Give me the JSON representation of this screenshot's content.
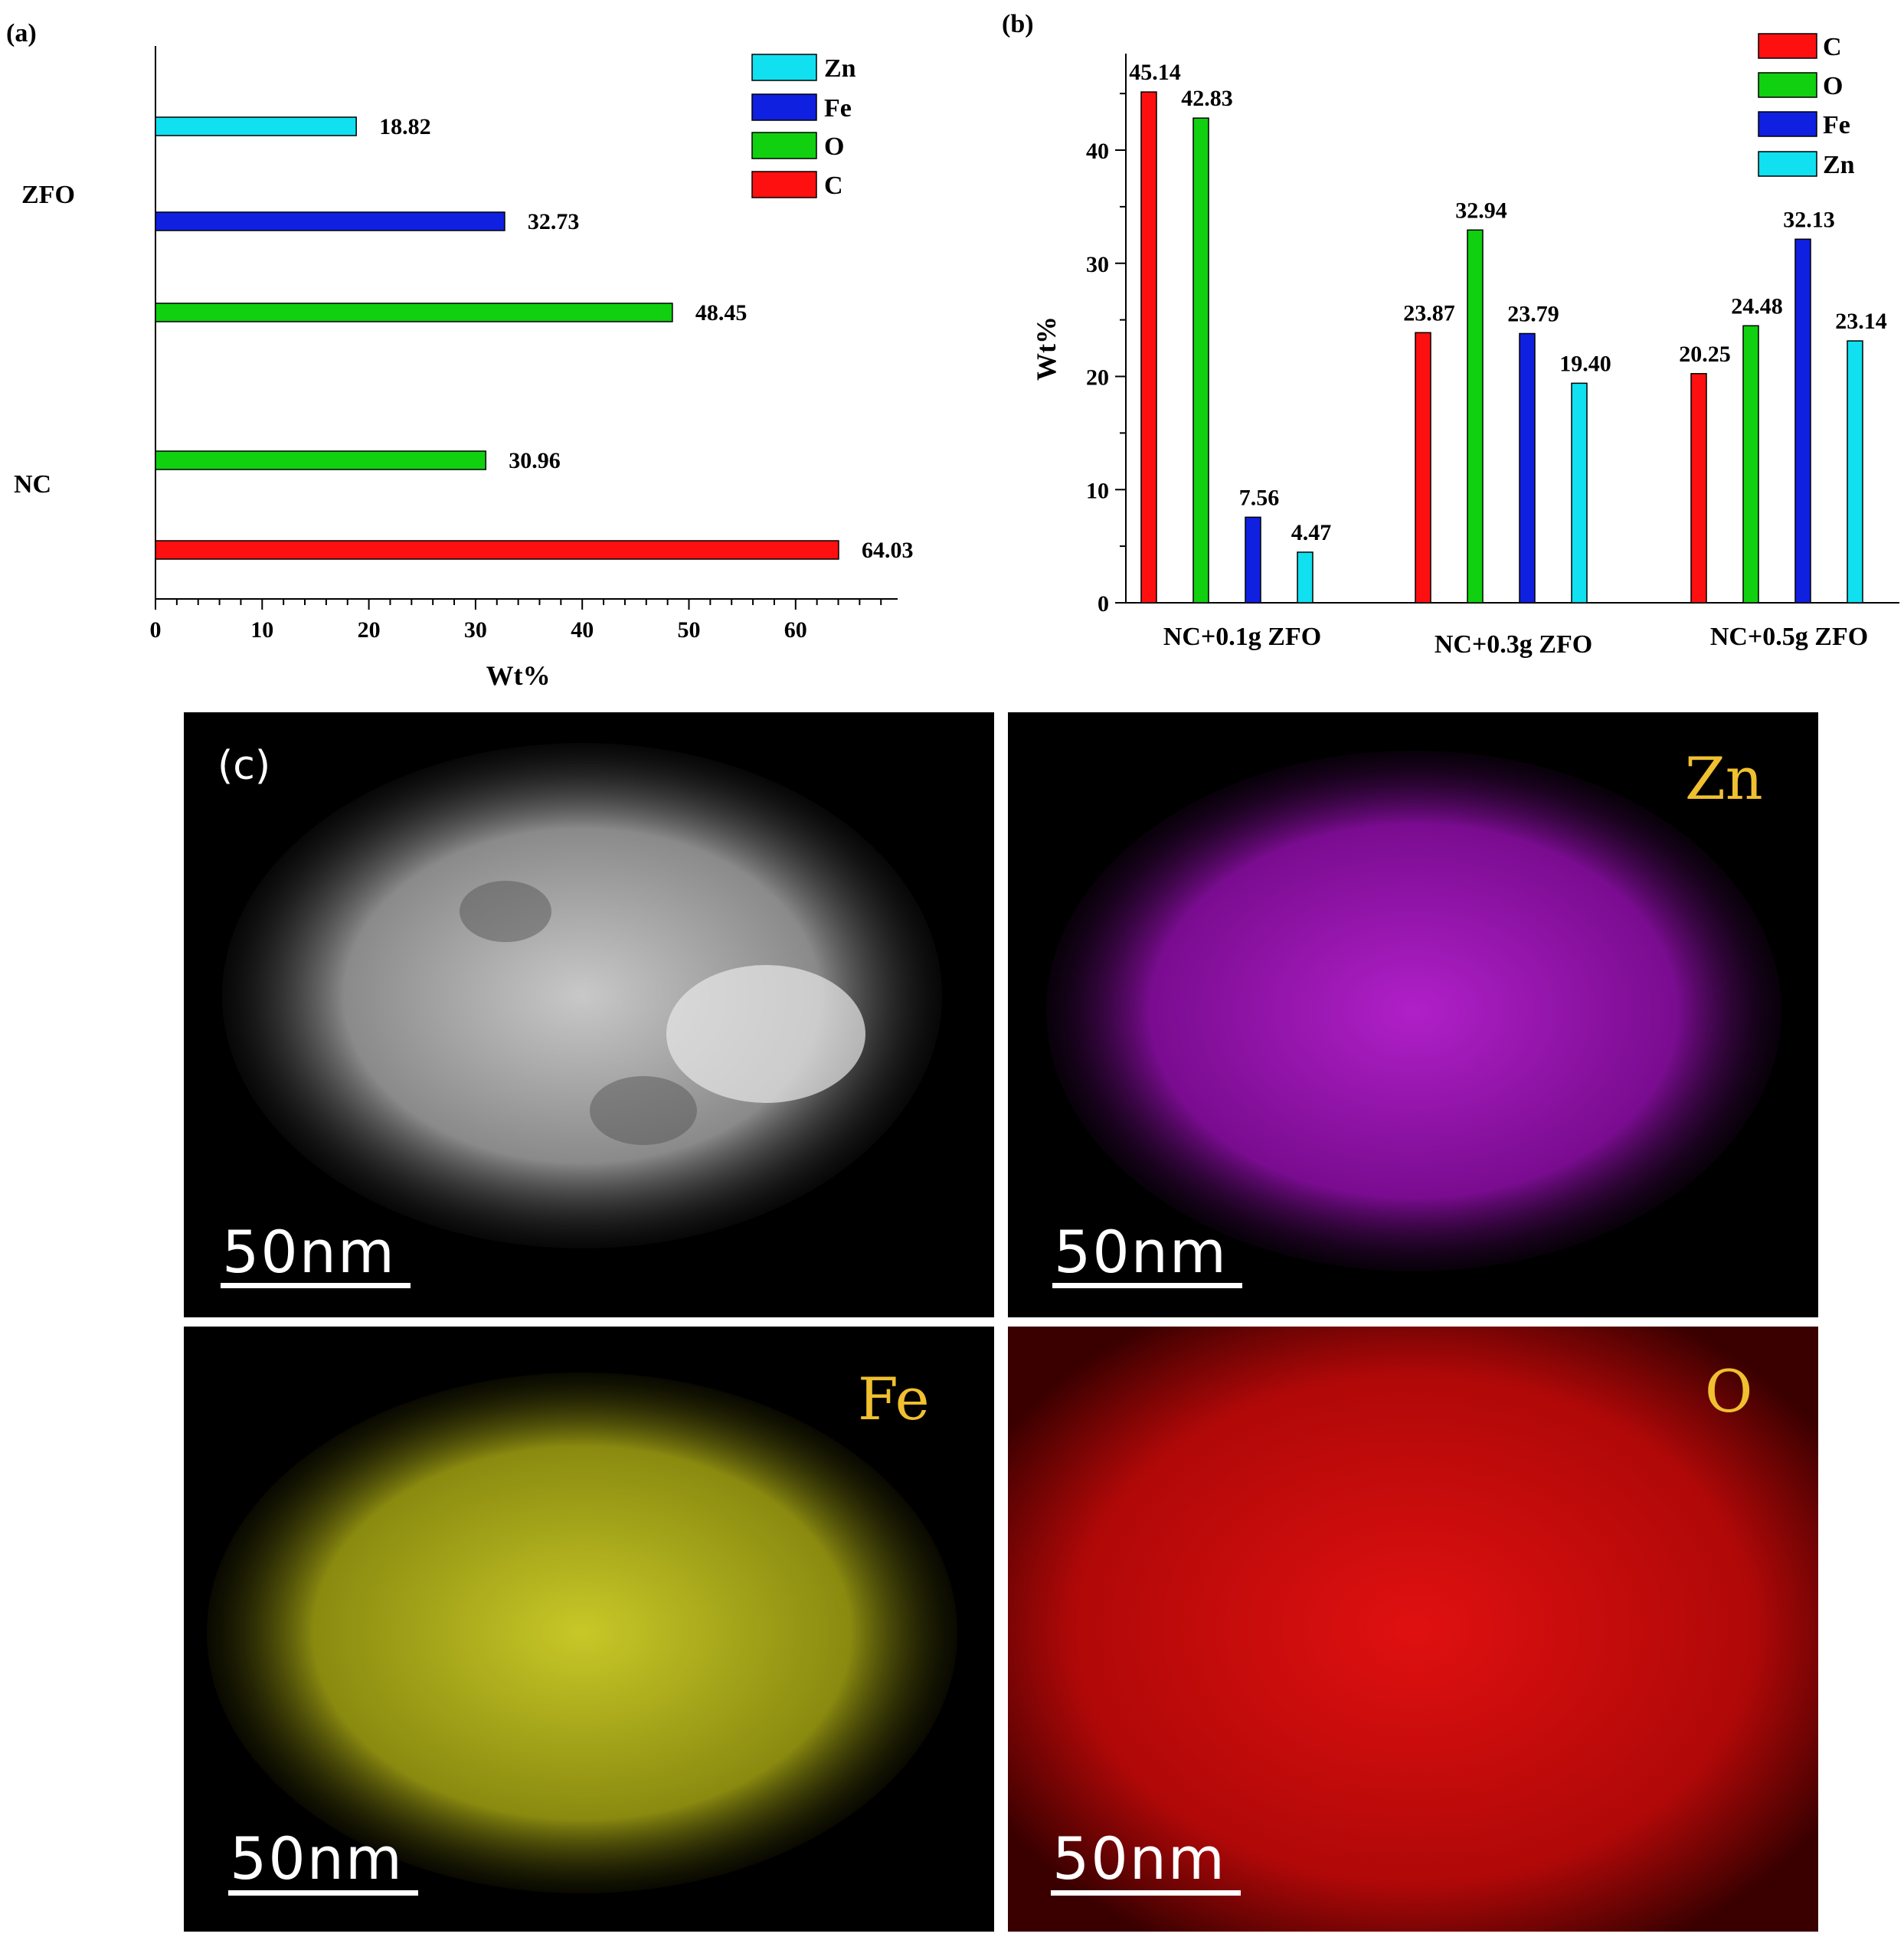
{
  "colors": {
    "C": "#ff1010",
    "O": "#10d010",
    "Fe": "#1020e0",
    "Zn": "#10e0f0"
  },
  "chart_data": [
    {
      "type": "bar",
      "orientation": "horizontal",
      "panel_label": "(a)",
      "xlabel": "Wt%",
      "xlim": [
        0,
        68
      ],
      "xticks": [
        "0",
        "10",
        "20",
        "30",
        "40",
        "50",
        "60"
      ],
      "group_labels": [
        "ZFO",
        "NC"
      ],
      "legend": [
        "Zn",
        "Fe",
        "O",
        "C"
      ],
      "legend_position": "top-right",
      "bars": [
        {
          "group": "ZFO",
          "series": "Zn",
          "value": 18.82,
          "label": "18.82"
        },
        {
          "group": "ZFO",
          "series": "Fe",
          "value": 32.73,
          "label": "32.73"
        },
        {
          "group": "ZFO",
          "series": "O",
          "value": 48.45,
          "label": "48.45"
        },
        {
          "group": "NC",
          "series": "O",
          "value": 30.96,
          "label": "30.96"
        },
        {
          "group": "NC",
          "series": "C",
          "value": 64.03,
          "label": "64.03"
        }
      ]
    },
    {
      "type": "bar",
      "orientation": "vertical",
      "panel_label": "(b)",
      "ylabel": "Wt%",
      "ylim": [
        0,
        49
      ],
      "yticks": [
        "0",
        "10",
        "20",
        "30",
        "40"
      ],
      "categories": [
        "NC+0.1g ZFO",
        "NC+0.3g ZFO",
        "NC+0.5g ZFO"
      ],
      "legend": [
        "C",
        "O",
        "Fe",
        "Zn"
      ],
      "legend_position": "top-right",
      "series": [
        {
          "name": "C",
          "values": [
            45.14,
            23.87,
            20.25
          ],
          "labels": [
            "45.14",
            "23.87",
            "20.25"
          ]
        },
        {
          "name": "O",
          "values": [
            42.83,
            32.94,
            24.48
          ],
          "labels": [
            "42.83",
            "32.94",
            "24.48"
          ]
        },
        {
          "name": "Fe",
          "values": [
            7.56,
            23.79,
            32.13
          ],
          "labels": [
            "7.56",
            "23.79",
            "32.13"
          ]
        },
        {
          "name": "Zn",
          "values": [
            4.47,
            19.4,
            23.14
          ],
          "labels": [
            "4.47",
            "19.40",
            "23.14"
          ]
        }
      ]
    }
  ],
  "maps": {
    "panel_label": "(c)",
    "panels": [
      {
        "element": "",
        "scale": "50nm",
        "tone": "gray"
      },
      {
        "element": "Zn",
        "scale": "50nm",
        "tone": "magenta"
      },
      {
        "element": "Fe",
        "scale": "50nm",
        "tone": "yellow"
      },
      {
        "element": "O",
        "scale": "50nm",
        "tone": "red"
      }
    ]
  }
}
